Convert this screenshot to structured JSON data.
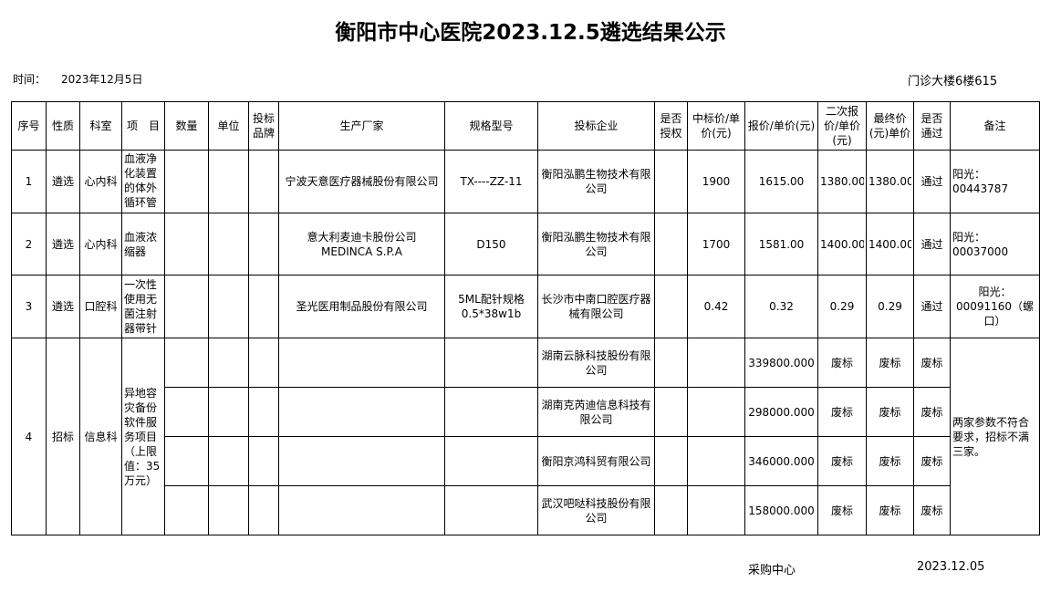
{
  "title": "衡阳市中心医院2023.12.5遴选结果公示",
  "time_label": "时间：",
  "date": "2023年12月5日",
  "location": "门诊大楼6楼615",
  "headers": [
    "序号",
    "性质",
    "科室",
    "项　目",
    "数量",
    "单位",
    "投标品牌",
    "生产厂家",
    "规格型号",
    "投标企业",
    "是否授权",
    "中标价/单价(元)",
    "报价/单价(元)",
    "二次报价/单价(元)",
    "最终价(元)单价",
    "是否通过",
    "备注"
  ],
  "rows": [
    {
      "no": "1",
      "type": "遴选",
      "dept": "心内科",
      "item": "血液净化装置的体外循环管路",
      "qty": "",
      "unit": "",
      "brand": "",
      "maker": "宁波天意医疗器械股份有限公司",
      "spec": "TX----ZZ-11",
      "bidder": "衡阳泓鹏生物技术有限公司",
      "auth": "",
      "win_price": "1900",
      "quote": "1615.00",
      "second": "1380.00",
      "final": "1380.00",
      "pass": "通过",
      "note": "阳光：00443787"
    },
    {
      "no": "2",
      "type": "遴选",
      "dept": "心内科",
      "item": "血液浓缩器",
      "qty": "",
      "unit": "",
      "brand": "",
      "maker": "意大利麦迪卡股份公司 MEDINCA S.P.A",
      "spec": "D150",
      "bidder": "衡阳泓鹏生物技术有限公司",
      "auth": "",
      "win_price": "1700",
      "quote": "1581.00",
      "second": "1400.00",
      "final": "1400.00",
      "pass": "通过",
      "note": "阳光：00037000"
    },
    {
      "no": "3",
      "type": "遴选",
      "dept": "口腔科",
      "item": "一次性使用无菌注射器带针",
      "qty": "",
      "unit": "",
      "brand": "",
      "maker": "圣光医用制品股份有限公司",
      "spec": "5ML配针规格0.5*38w1b",
      "bidder": "长沙市中南口腔医疗器械有限公司",
      "auth": "",
      "win_price": "0.42",
      "quote": "0.32",
      "second": "0.29",
      "final": "0.29",
      "pass": "通过",
      "note": "阳光：00091160（螺口）"
    }
  ],
  "row4": {
    "no": "4",
    "type": "招标",
    "dept": "信息科",
    "item": "异地容灾备份软件服务项目（上限值：35万元）",
    "note": "两家参数不符合要求，招标不满三家。",
    "bids": [
      {
        "bidder": "湖南云脉科技股份有限公司",
        "quote": "339800.000",
        "second": "废标",
        "final": "废标",
        "pass": "废标"
      },
      {
        "bidder": "湖南克芮迪信息科技有限公司",
        "quote": "298000.000",
        "second": "废标",
        "final": "废标",
        "pass": "废标"
      },
      {
        "bidder": "衡阳京鸿科贸有限公司",
        "quote": "346000.000",
        "second": "废标",
        "final": "废标",
        "pass": "废标"
      },
      {
        "bidder": "武汉吧哒科技股份有限公司",
        "quote": "158000.000",
        "second": "废标",
        "final": "废标",
        "pass": "废标"
      }
    ]
  },
  "footer": {
    "dept": "采购中心",
    "date": "2023.12.05"
  }
}
